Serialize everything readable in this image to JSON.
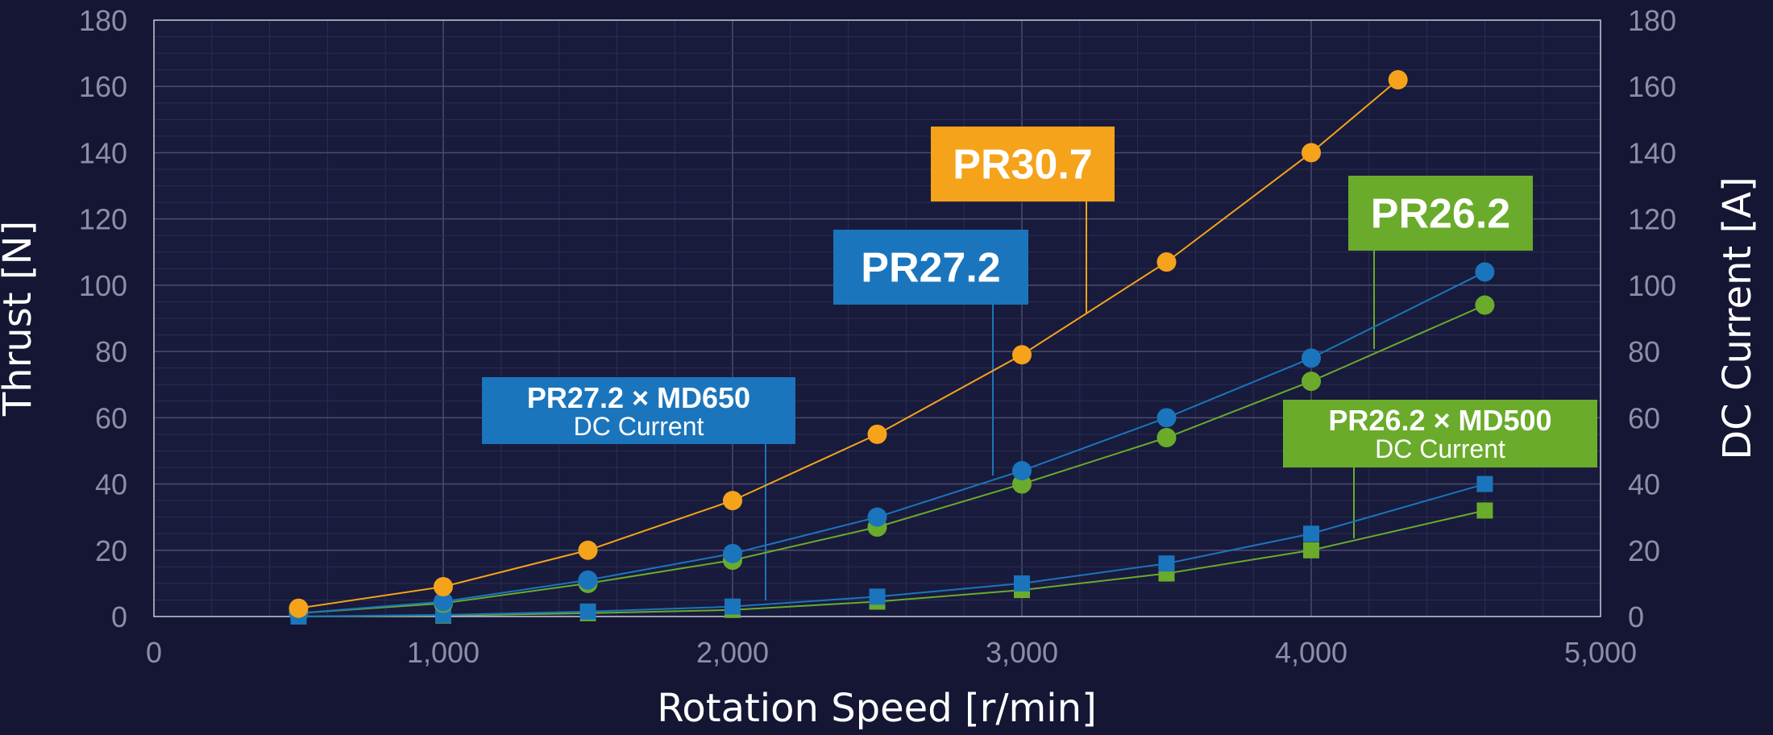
{
  "chart_data": {
    "type": "line",
    "xlabel": "Rotation Speed [r/min]",
    "ylabel": "Thrust [N]",
    "y2label": "DC Current [A]",
    "xlim": [
      0,
      5000
    ],
    "ylim": [
      0,
      180
    ],
    "y2lim": [
      0,
      180
    ],
    "x_ticks": [
      "0",
      "1,000",
      "2,000",
      "3,000",
      "4,000",
      "5,000"
    ],
    "y_ticks": [
      "0",
      "20",
      "40",
      "60",
      "80",
      "100",
      "120",
      "140",
      "160",
      "180"
    ],
    "grid": true,
    "series": [
      {
        "name": "PR30.7",
        "axis": "thrust",
        "marker": "circle",
        "color": "#f5a31a",
        "x": [
          500,
          1000,
          1500,
          2000,
          2500,
          3000,
          3500,
          4000,
          4300
        ],
        "y": [
          2.5,
          9,
          20,
          35,
          55,
          79,
          107,
          140,
          162
        ]
      },
      {
        "name": "PR27.2",
        "axis": "thrust",
        "marker": "circle",
        "color": "#1b75bc",
        "x": [
          500,
          1000,
          1500,
          2000,
          2500,
          3000,
          3500,
          4000,
          4600
        ],
        "y": [
          1,
          4.5,
          11,
          19,
          30,
          44,
          60,
          78,
          104
        ]
      },
      {
        "name": "PR26.2",
        "axis": "thrust",
        "marker": "circle",
        "color": "#6aab2b",
        "x": [
          500,
          1000,
          1500,
          2000,
          2500,
          3000,
          3500,
          4000,
          4600
        ],
        "y": [
          1,
          4,
          10,
          17,
          27,
          40,
          54,
          71,
          94
        ]
      },
      {
        "name": "PR27.2 × MD650 DC Current",
        "axis": "current",
        "marker": "square",
        "color": "#1b75bc",
        "x": [
          500,
          1000,
          1500,
          2000,
          2500,
          3000,
          3500,
          4000,
          4600
        ],
        "y": [
          0,
          0.5,
          1.5,
          3,
          6,
          10,
          16,
          25,
          40
        ]
      },
      {
        "name": "PR26.2 × MD500 DC Current",
        "axis": "current",
        "marker": "square",
        "color": "#6aab2b",
        "x": [
          500,
          1000,
          1500,
          2000,
          2500,
          3000,
          3500,
          4000,
          4600
        ],
        "y": [
          0,
          0.3,
          1,
          2,
          4.5,
          8,
          13,
          20,
          32
        ]
      }
    ],
    "callouts": [
      {
        "text": "PR30.7",
        "sub": "",
        "color": "#f5a31a",
        "series": 0
      },
      {
        "text": "PR27.2",
        "sub": "",
        "color": "#1b75bc",
        "series": 1
      },
      {
        "text": "PR26.2",
        "sub": "",
        "color": "#6aab2b",
        "series": 2
      },
      {
        "text": "PR27.2 × MD650",
        "sub": "DC Current",
        "color": "#1b75bc",
        "series": 3
      },
      {
        "text": "PR26.2 × MD500",
        "sub": "DC Current",
        "color": "#6aab2b",
        "series": 4
      }
    ]
  }
}
